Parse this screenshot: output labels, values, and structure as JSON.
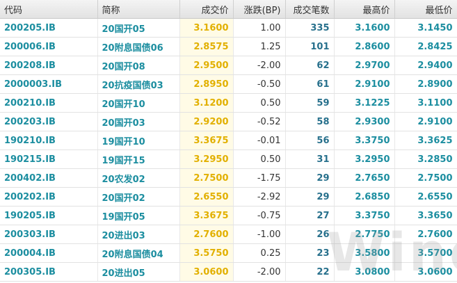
{
  "table": {
    "header": [
      "代码",
      "简称",
      "成交价",
      "涨跌(BP)",
      "成交笔数",
      "最高价",
      "最低价"
    ],
    "rows": [
      [
        "200205.IB",
        "20国开05",
        "3.1600",
        "1.00",
        "335",
        "3.1600",
        "3.1450"
      ],
      [
        "200006.IB",
        "20附息国债06",
        "2.8575",
        "1.25",
        "101",
        "2.8600",
        "2.8425"
      ],
      [
        "200208.IB",
        "20国开08",
        "2.9500",
        "-2.00",
        "62",
        "2.9700",
        "2.9400"
      ],
      [
        "2000003.IB",
        "20抗疫国债03",
        "2.8950",
        "-0.50",
        "61",
        "2.9100",
        "2.8900"
      ],
      [
        "200210.IB",
        "20国开10",
        "3.1200",
        "0.50",
        "59",
        "3.1225",
        "3.1100"
      ],
      [
        "200203.IB",
        "20国开03",
        "2.9200",
        "-0.52",
        "58",
        "2.9300",
        "2.9100"
      ],
      [
        "190210.IB",
        "19国开10",
        "3.3675",
        "-0.01",
        "56",
        "3.3750",
        "3.3625"
      ],
      [
        "190215.IB",
        "19国开15",
        "3.2950",
        "0.50",
        "31",
        "3.2950",
        "3.2850"
      ],
      [
        "200402.IB",
        "20农发02",
        "2.7500",
        "-1.75",
        "29",
        "2.7650",
        "2.7500"
      ],
      [
        "200202.IB",
        "20国开02",
        "2.6550",
        "-2.92",
        "29",
        "2.6850",
        "2.6550"
      ],
      [
        "190205.IB",
        "19国开05",
        "3.3675",
        "-0.75",
        "27",
        "3.3750",
        "3.3650"
      ],
      [
        "200303.IB",
        "20进出03",
        "2.7600",
        "-1.00",
        "26",
        "2.7750",
        "2.7600"
      ],
      [
        "200004.IB",
        "20附息国债04",
        "3.5750",
        "0.25",
        "23",
        "3.5800",
        "3.5700"
      ],
      [
        "200305.IB",
        "20进出05",
        "3.0600",
        "-2.00",
        "22",
        "3.0800",
        "3.0600"
      ]
    ]
  },
  "watermark": "Wind"
}
